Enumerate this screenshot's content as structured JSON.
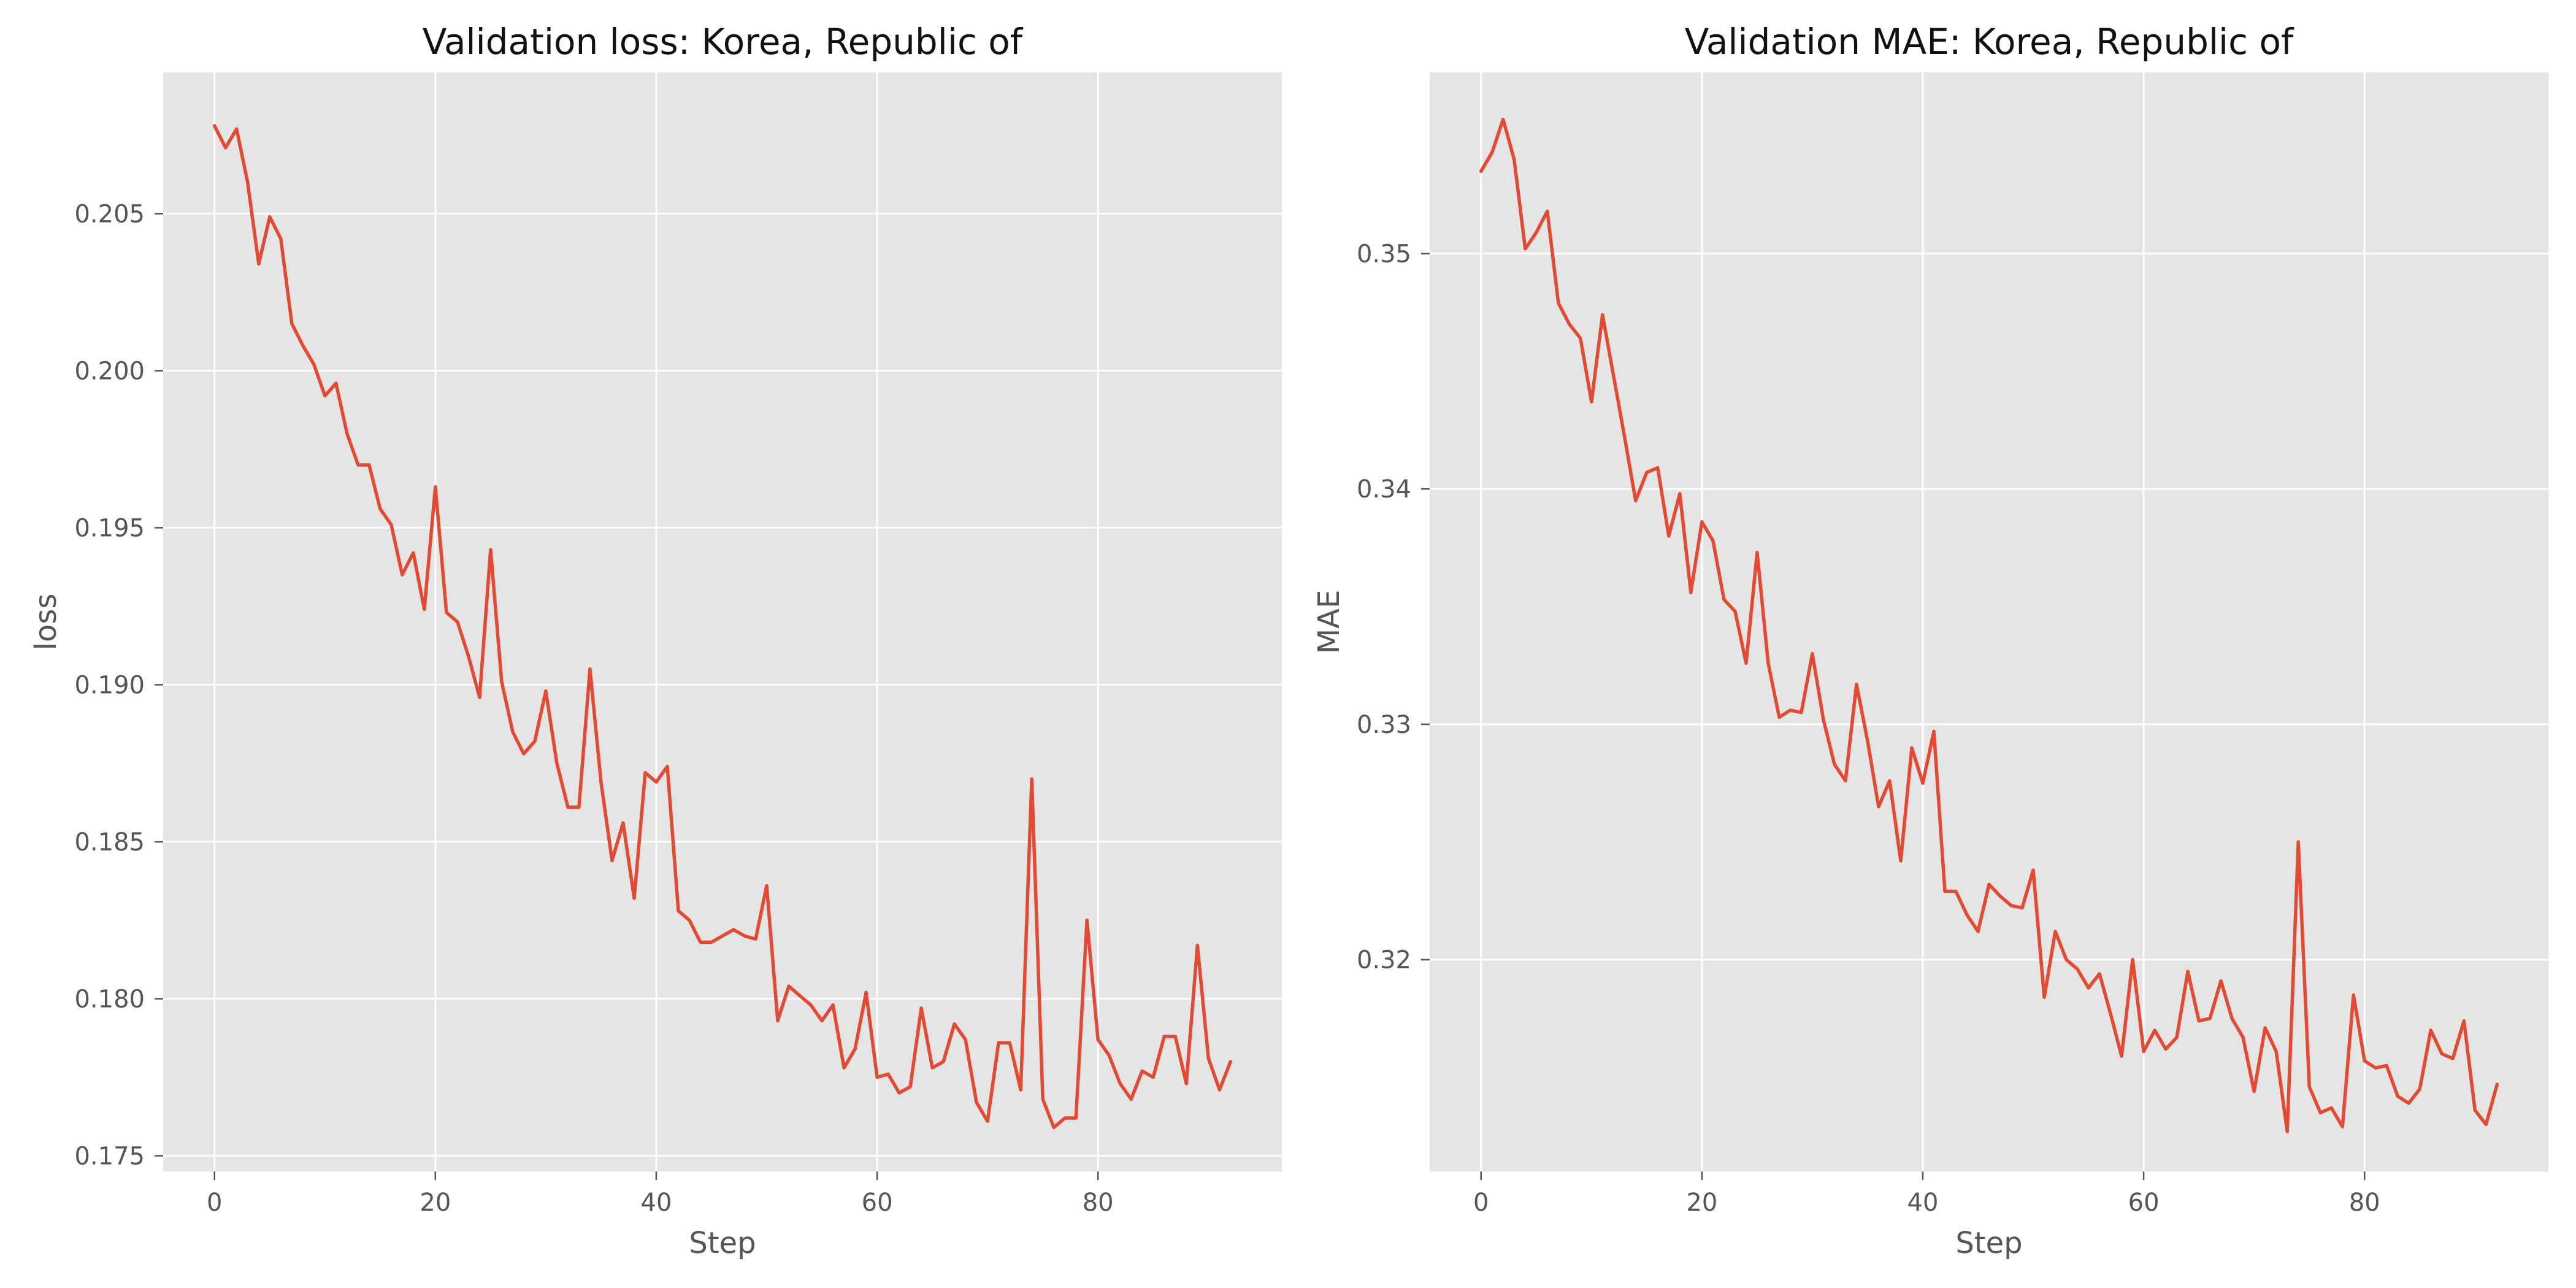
{
  "chart_data": [
    {
      "type": "line",
      "title": "Validation loss: Korea, Republic of",
      "xlabel": "Step",
      "ylabel": "loss",
      "xlim": [
        -4.65,
        96.65
      ],
      "ylim": [
        0.1745,
        0.2095
      ],
      "xticks": [
        0,
        20,
        40,
        60,
        80
      ],
      "xtick_labels": [
        "0",
        "20",
        "40",
        "60",
        "80"
      ],
      "yticks": [
        0.175,
        0.18,
        0.185,
        0.19,
        0.195,
        0.2,
        0.205
      ],
      "ytick_labels": [
        "0.175",
        "0.180",
        "0.185",
        "0.190",
        "0.195",
        "0.200",
        "0.205"
      ],
      "grid": true,
      "color": "#e24a33",
      "x": [
        0,
        1,
        2,
        3,
        4,
        5,
        6,
        7,
        8,
        9,
        10,
        11,
        12,
        13,
        14,
        15,
        16,
        17,
        18,
        19,
        20,
        21,
        22,
        23,
        24,
        25,
        26,
        27,
        28,
        29,
        30,
        31,
        32,
        33,
        34,
        35,
        36,
        37,
        38,
        39,
        40,
        41,
        42,
        43,
        44,
        45,
        46,
        47,
        48,
        49,
        50,
        51,
        52,
        53,
        54,
        55,
        56,
        57,
        58,
        59,
        60,
        61,
        62,
        63,
        64,
        65,
        66,
        67,
        68,
        69,
        70,
        71,
        72,
        73,
        74,
        75,
        76,
        77,
        78,
        79,
        80,
        81,
        82,
        83,
        84,
        85,
        86,
        87,
        88,
        89,
        90,
        91,
        92
      ],
      "y": [
        0.2078,
        0.2071,
        0.2077,
        0.206,
        0.2034,
        0.2049,
        0.2042,
        0.2015,
        0.2008,
        0.2002,
        0.1992,
        0.1996,
        0.198,
        0.197,
        0.197,
        0.1956,
        0.1951,
        0.1935,
        0.1942,
        0.1924,
        0.1963,
        0.1923,
        0.192,
        0.1909,
        0.1896,
        0.1943,
        0.1901,
        0.1885,
        0.1878,
        0.1882,
        0.1898,
        0.1875,
        0.1861,
        0.1861,
        0.1905,
        0.1869,
        0.1844,
        0.1856,
        0.1832,
        0.1872,
        0.1869,
        0.1874,
        0.1828,
        0.1825,
        0.1818,
        0.1818,
        0.182,
        0.1822,
        0.182,
        0.1819,
        0.1836,
        0.1793,
        0.1804,
        0.1801,
        0.1798,
        0.1793,
        0.1798,
        0.1778,
        0.1784,
        0.1802,
        0.1775,
        0.1776,
        0.177,
        0.1772,
        0.1797,
        0.1778,
        0.178,
        0.1792,
        0.1787,
        0.1767,
        0.1761,
        0.1786,
        0.1786,
        0.1771,
        0.187,
        0.1768,
        0.1759,
        0.1762,
        0.1762,
        0.1825,
        0.1787,
        0.1782,
        0.1773,
        0.1768,
        0.1777,
        0.1775,
        0.1788,
        0.1788,
        0.1773,
        0.1817,
        0.1781,
        0.1771,
        0.178
      ]
    },
    {
      "type": "line",
      "title": "Validation MAE: Korea, Republic of",
      "xlabel": "Step",
      "ylabel": "MAE",
      "xlim": [
        -4.65,
        96.65
      ],
      "ylim": [
        0.311,
        0.3577
      ],
      "xticks": [
        0,
        20,
        40,
        60,
        80
      ],
      "xtick_labels": [
        "0",
        "20",
        "40",
        "60",
        "80"
      ],
      "yticks": [
        0.32,
        0.33,
        0.34,
        0.35
      ],
      "ytick_labels": [
        "0.32",
        "0.33",
        "0.34",
        "0.35"
      ],
      "grid": true,
      "color": "#e24a33",
      "x": [
        0,
        1,
        2,
        3,
        4,
        5,
        6,
        7,
        8,
        9,
        10,
        11,
        12,
        13,
        14,
        15,
        16,
        17,
        18,
        19,
        20,
        21,
        22,
        23,
        24,
        25,
        26,
        27,
        28,
        29,
        30,
        31,
        32,
        33,
        34,
        35,
        36,
        37,
        38,
        39,
        40,
        41,
        42,
        43,
        44,
        45,
        46,
        47,
        48,
        49,
        50,
        51,
        52,
        53,
        54,
        55,
        56,
        57,
        58,
        59,
        60,
        61,
        62,
        63,
        64,
        65,
        66,
        67,
        68,
        69,
        70,
        71,
        72,
        73,
        74,
        75,
        76,
        77,
        78,
        79,
        80,
        81,
        82,
        83,
        84,
        85,
        86,
        87,
        88,
        89,
        90,
        91,
        92
      ],
      "y": [
        0.3535,
        0.3543,
        0.3557,
        0.354,
        0.3502,
        0.3509,
        0.3518,
        0.3479,
        0.347,
        0.3464,
        0.3437,
        0.3474,
        0.3448,
        0.3422,
        0.3395,
        0.3407,
        0.3409,
        0.338,
        0.3398,
        0.3356,
        0.3386,
        0.3378,
        0.3353,
        0.3348,
        0.3326,
        0.3373,
        0.3326,
        0.3303,
        0.3306,
        0.3305,
        0.333,
        0.3302,
        0.3283,
        0.3276,
        0.3317,
        0.3293,
        0.3265,
        0.3276,
        0.3242,
        0.329,
        0.3275,
        0.3297,
        0.3229,
        0.3229,
        0.3219,
        0.3212,
        0.3232,
        0.3227,
        0.3223,
        0.3222,
        0.3238,
        0.3184,
        0.3212,
        0.32,
        0.3196,
        0.3188,
        0.3194,
        0.3177,
        0.3159,
        0.32,
        0.3161,
        0.317,
        0.3162,
        0.3167,
        0.3195,
        0.3174,
        0.3175,
        0.3191,
        0.3175,
        0.3167,
        0.3144,
        0.3171,
        0.3161,
        0.3127,
        0.325,
        0.3146,
        0.3135,
        0.3137,
        0.3129,
        0.3185,
        0.3157,
        0.3154,
        0.3155,
        0.3142,
        0.3139,
        0.3145,
        0.317,
        0.316,
        0.3158,
        0.3174,
        0.3136,
        0.313,
        0.3147
      ]
    }
  ]
}
